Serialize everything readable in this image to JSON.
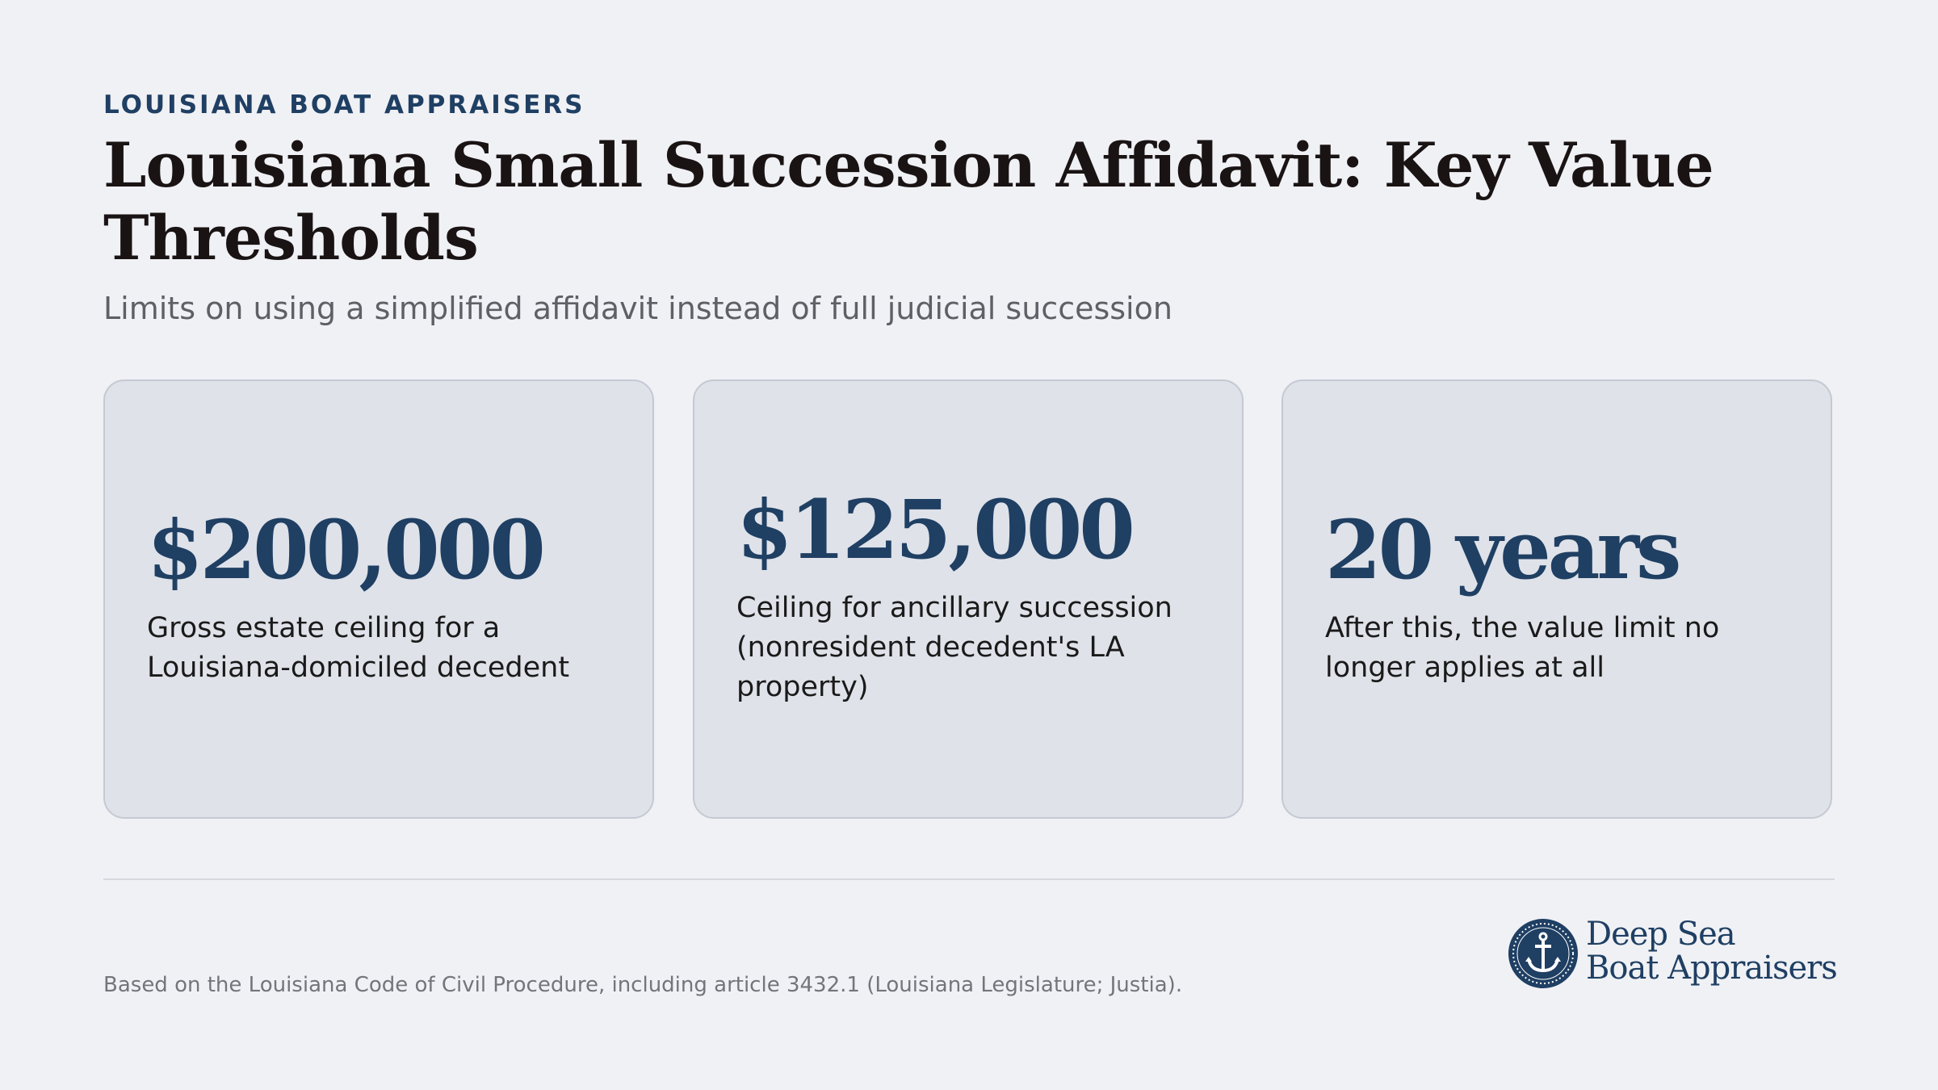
{
  "header": {
    "eyebrow": "LOUISIANA BOAT APPRAISERS",
    "title": "Louisiana Small Succession Affidavit: Key Value Thresholds",
    "subtitle": "Limits on using a simplified affidavit instead of full judicial succession"
  },
  "cards": [
    {
      "value": "$200,000",
      "description": "Gross estate ceiling for a Louisiana-domiciled decedent"
    },
    {
      "value": "$125,000",
      "description": "Ceiling for ancillary succession (nonresident decedent's LA property)"
    },
    {
      "value": "20 years",
      "description": "After this, the value limit no longer applies at all"
    }
  ],
  "footer": {
    "note": "Based on the Louisiana Code of Civil Procedure, including article 3432.1 (Louisiana Legislature; Justia).",
    "logo_line1": "Deep Sea",
    "logo_line2": "Boat Appraisers",
    "logo_icon": "anchor-icon"
  },
  "colors": {
    "background": "#f0f1f5",
    "accent": "#1f3f63",
    "card_bg": "#dfe2e9",
    "title": "#1a1314"
  }
}
